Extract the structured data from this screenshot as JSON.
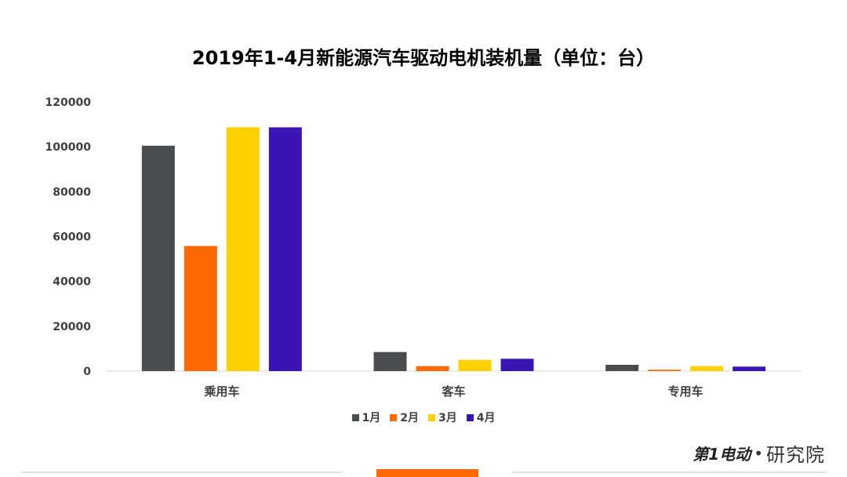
{
  "chart_data": {
    "type": "bar",
    "title": "2019年1-4月新能源汽车驱动电机装机量（单位：台）",
    "categories": [
      "乘用车",
      "客车",
      "专用车"
    ],
    "ylim": [
      0,
      120000
    ],
    "yticks": [
      0,
      20000,
      40000,
      60000,
      80000,
      100000,
      120000
    ],
    "ytick_labels": [
      "0",
      "20000",
      "40000",
      "60000",
      "80000",
      "100000",
      "120000"
    ],
    "grid": false,
    "legend_position": "bottom",
    "series": [
      {
        "name": "1月",
        "color": "#4a4d4f",
        "values": [
          100500,
          8500,
          2800
        ]
      },
      {
        "name": "2月",
        "color": "#ff6a00",
        "values": [
          55800,
          2200,
          600
        ]
      },
      {
        "name": "3月",
        "color": "#ffd000",
        "values": [
          108700,
          5000,
          2200
        ]
      },
      {
        "name": "4月",
        "color": "#3a14b4",
        "values": [
          108700,
          5500,
          2000
        ]
      }
    ]
  },
  "brand": {
    "logo_text": "第1电动",
    "dot": "•",
    "name": "研究院",
    "accent": "#ff6a00"
  }
}
